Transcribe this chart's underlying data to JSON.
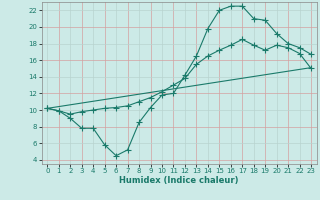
{
  "xlabel": "Humidex (Indice chaleur)",
  "bg_color": "#cceae7",
  "grid_color_major": "#c8b8b8",
  "grid_color_minor": "#b8d8d5",
  "line_color": "#1a7a6a",
  "xlim": [
    -0.5,
    23.5
  ],
  "ylim": [
    3.5,
    23.0
  ],
  "xticks": [
    0,
    1,
    2,
    3,
    4,
    5,
    6,
    7,
    8,
    9,
    10,
    11,
    12,
    13,
    14,
    15,
    16,
    17,
    18,
    19,
    20,
    21,
    22,
    23
  ],
  "yticks": [
    4,
    6,
    8,
    10,
    12,
    14,
    16,
    18,
    20,
    22
  ],
  "line1_x": [
    0,
    1,
    2,
    3,
    4,
    5,
    6,
    7,
    8,
    9,
    10,
    11,
    12,
    13,
    14,
    15,
    16,
    17,
    18,
    19,
    20,
    21,
    22,
    23
  ],
  "line1_y": [
    10.2,
    9.9,
    9.0,
    7.8,
    7.8,
    5.8,
    4.5,
    5.2,
    8.5,
    10.3,
    11.8,
    12.0,
    14.2,
    16.5,
    19.8,
    22.0,
    22.5,
    22.5,
    21.0,
    20.8,
    19.2,
    18.0,
    17.5,
    16.7
  ],
  "line2_x": [
    0,
    23
  ],
  "line2_y": [
    10.2,
    15.1
  ],
  "line3_x": [
    0,
    1,
    2,
    3,
    4,
    5,
    6,
    7,
    8,
    9,
    10,
    11,
    12,
    13,
    14,
    15,
    16,
    17,
    18,
    19,
    20,
    21,
    22,
    23
  ],
  "line3_y": [
    10.2,
    9.9,
    9.5,
    9.8,
    10.0,
    10.2,
    10.3,
    10.5,
    11.0,
    11.5,
    12.2,
    13.0,
    13.8,
    15.5,
    16.5,
    17.2,
    17.8,
    18.5,
    17.8,
    17.2,
    17.8,
    17.5,
    16.8,
    15.0
  ]
}
